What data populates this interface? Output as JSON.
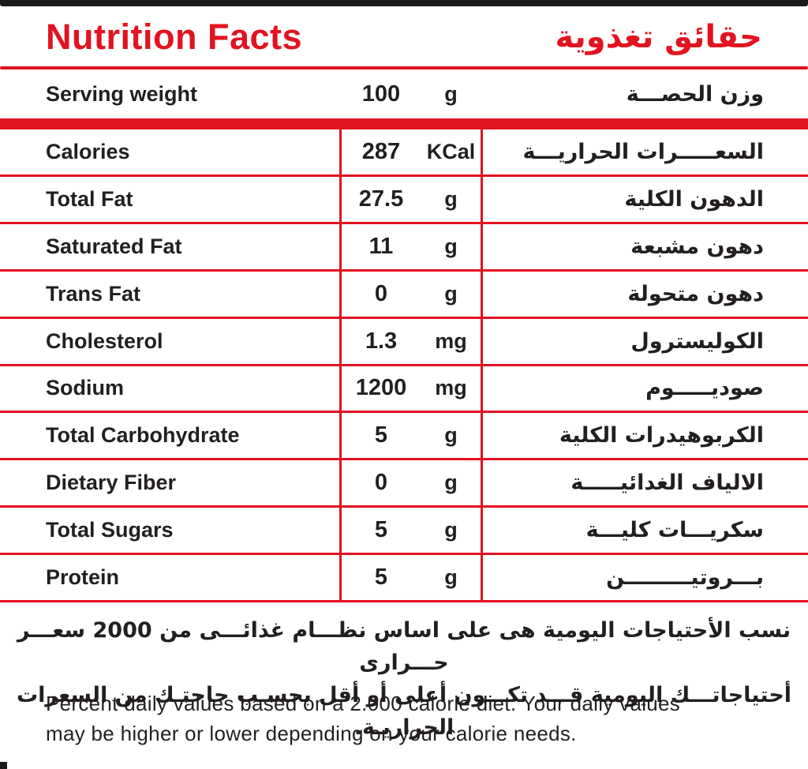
{
  "colors": {
    "red": "#e21320",
    "text": "#231f20"
  },
  "header": {
    "title_en": "Nutrition Facts",
    "title_ar": "حقائق تغذوية"
  },
  "serving": {
    "label_en": "Serving weight",
    "value": "100",
    "unit": "g",
    "label_ar": "وزن الحصـــة"
  },
  "table": {
    "rows": [
      {
        "label_en": "Calories",
        "value": "287",
        "unit": "KCal",
        "label_ar": "السعـــــرات الحراريـــة"
      },
      {
        "label_en": "Total Fat",
        "value": "27.5",
        "unit": "g",
        "label_ar": "الدهون الكلية"
      },
      {
        "label_en": "Saturated Fat",
        "value": "11",
        "unit": "g",
        "label_ar": "دهون مشبعة"
      },
      {
        "label_en": "Trans Fat",
        "value": "0",
        "unit": "g",
        "label_ar": "دهون متحولة"
      },
      {
        "label_en": "Cholesterol",
        "value": "1.3",
        "unit": "mg",
        "label_ar": "الكوليسترول"
      },
      {
        "label_en": "Sodium",
        "value": "1200",
        "unit": "mg",
        "label_ar": "صوديـــــوم"
      },
      {
        "label_en": "Total Carbohydrate",
        "value": "5",
        "unit": "g",
        "label_ar": "الكربوهيدرات الكلية"
      },
      {
        "label_en": "Dietary Fiber",
        "value": "0",
        "unit": "g",
        "label_ar": "الالياف الغدائيـــــة"
      },
      {
        "label_en": "Total Sugars",
        "value": "5",
        "unit": "g",
        "label_ar": "سكريـــات كليـــة"
      },
      {
        "label_en": "Protein",
        "value": "5",
        "unit": "g",
        "label_ar": "بـــروتيـــــــــن"
      }
    ]
  },
  "footnote_ar": {
    "line1": "نسب الأحتياجات اليومية هى على اساس نظـــام غذائـــى من 2000 سعـــر حـــرارى",
    "line2": "أحتياجاتـــك اليومية قـــد تكـــون أعلى أو أقل بحسـب حاجتـك من السعرات الحراريـة."
  },
  "footnote_en": {
    "line1": "Percent daily values based on a 2.000 calorie diet. Your daily values",
    "line2": "may be higher or lower depending on your calorie needs."
  }
}
